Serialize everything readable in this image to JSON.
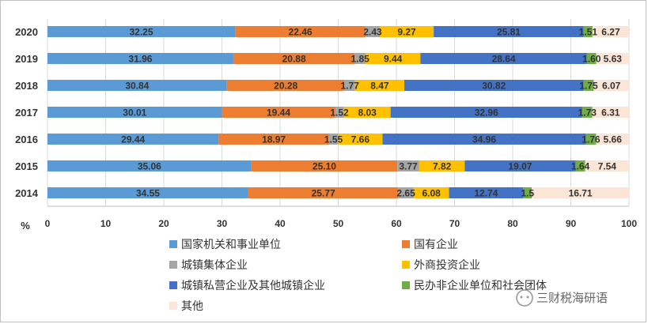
{
  "chart_data": {
    "type": "bar",
    "orientation": "horizontal",
    "stacked": true,
    "categories": [
      "2020",
      "2019",
      "2018",
      "2017",
      "2016",
      "2015",
      "2014"
    ],
    "series": [
      {
        "name": "国家机关和事业单位",
        "color": "#5b9bd5",
        "values": [
          32.25,
          31.96,
          30.84,
          30.01,
          29.44,
          35.06,
          34.55
        ],
        "labels": [
          "32.25",
          "31.96",
          "30.84",
          "30.01",
          "29.44",
          "35.06",
          "34.55"
        ]
      },
      {
        "name": "国有企业",
        "color": "#ed7d31",
        "values": [
          22.46,
          20.88,
          20.28,
          19.44,
          18.97,
          25.1,
          25.77
        ],
        "labels": [
          "22.46",
          "20.88",
          "20.28",
          "19.44",
          "18.97",
          "25.10",
          "25.77"
        ]
      },
      {
        "name": "城镇集体企业",
        "color": "#a5a5a5",
        "values": [
          2.43,
          1.85,
          1.77,
          1.52,
          1.55,
          3.77,
          2.65
        ],
        "labels": [
          "2.43",
          "1.85",
          "1.77",
          "1.52",
          "1.55",
          "3.77",
          "2.65"
        ]
      },
      {
        "name": "外商投资企业",
        "color": "#ffc000",
        "values": [
          9.27,
          9.44,
          8.47,
          8.03,
          7.66,
          7.82,
          6.08
        ],
        "labels": [
          "9.27",
          "9.44",
          "8.47",
          "8.03",
          "7.66",
          "7.82",
          "6.08"
        ]
      },
      {
        "name": "城镇私营企业及其他城镇企业",
        "color": "#4472c4",
        "values": [
          25.81,
          28.64,
          30.82,
          32.96,
          34.96,
          19.07,
          12.74
        ],
        "labels": [
          "25.81",
          "28.64",
          "30.82",
          "32.96",
          "34.96",
          "19.07",
          "12.74"
        ]
      },
      {
        "name": "民办非企业单位和社会团体",
        "color": "#70ad47",
        "values": [
          1.51,
          1.6,
          1.75,
          1.73,
          1.76,
          1.64,
          1.5
        ],
        "labels": [
          "1.51",
          "1.60",
          "1.75",
          "1.73",
          "1.76",
          "1.64",
          "1.5"
        ]
      },
      {
        "name": "其他",
        "color": "#fbe5d6",
        "values": [
          6.27,
          5.63,
          6.07,
          6.31,
          5.66,
          7.54,
          16.71
        ],
        "labels": [
          "6.27",
          "5.63",
          "6.07",
          "6.31",
          "5.66",
          "7.54",
          "16.71"
        ]
      }
    ],
    "xlim": [
      0,
      100
    ],
    "x_ticks": [
      0,
      10,
      20,
      30,
      40,
      50,
      60,
      70,
      80,
      90,
      100
    ],
    "unit_label": "%",
    "xlabel": "",
    "ylabel": "",
    "title": "",
    "grid": true,
    "legend_position": "bottom"
  },
  "watermark": {
    "text": "三财税海研语"
  }
}
